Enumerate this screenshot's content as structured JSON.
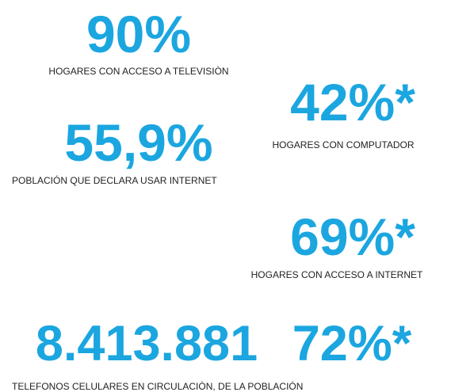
{
  "stats": [
    {
      "value": "90%",
      "label": "HOGARES CON ACCESO A TELEVISIÒN"
    },
    {
      "value": "42%*",
      "label": "HOGARES CON COMPUTADOR"
    },
    {
      "value": "55,9%",
      "label": "POBLACIÓN QUE DECLARA USAR INTERNET"
    },
    {
      "value": "69%*",
      "label": "HOGARES CON ACCESO A INTERNET"
    }
  ],
  "phones": {
    "values": [
      "8.413.881",
      "72%*"
    ],
    "label": "TELEFONOS CELULARES EN CIRCULACIÒN, DE LA POBLACIÓN"
  }
}
